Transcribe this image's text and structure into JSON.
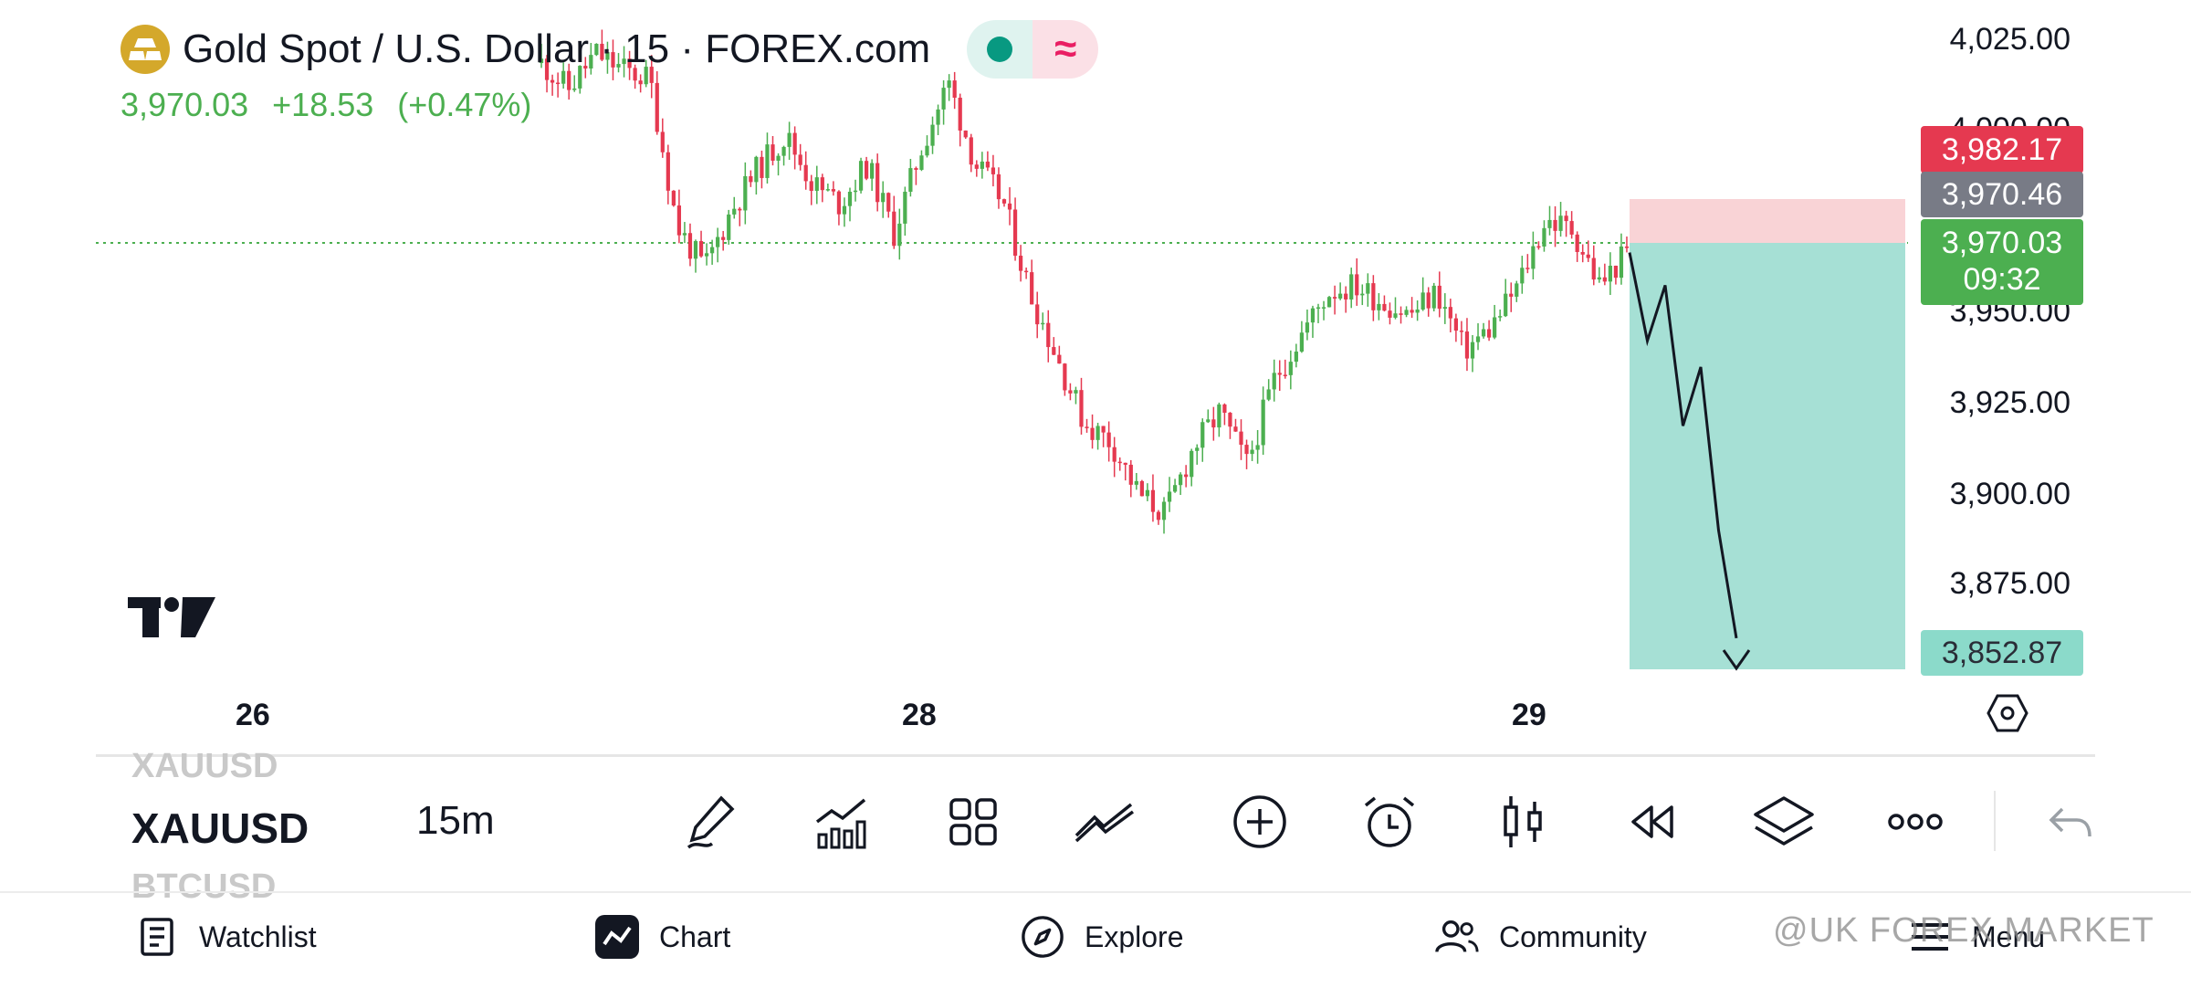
{
  "header": {
    "title": "Gold Spot / U.S. Dollar · 15 · FOREX.com",
    "last_price": "3,970.03",
    "change": "+18.53",
    "change_pct": "(+0.47%)"
  },
  "price_axis": {
    "labels": [
      "4,025.00",
      "4,000.00",
      "3,950.00",
      "3,925.00",
      "3,900.00",
      "3,875.00"
    ],
    "tags": {
      "stop": "3,982.17",
      "entry": "3,970.46",
      "current": "3,970.03",
      "countdown": "09:32",
      "target": "3,852.87"
    }
  },
  "time_axis": {
    "labels": [
      "26",
      "28",
      "29"
    ]
  },
  "colors": {
    "up": "#4caf50",
    "down": "#e53950",
    "stop_zone": "#f9d3d6",
    "target_zone": "#a6e0d5",
    "entry_tag": "#787b86"
  },
  "chart_data": {
    "type": "candlestick",
    "symbol": "XAUUSD",
    "interval": "15",
    "ylim": [
      3845,
      4035
    ],
    "close_path": [
      4028,
      4020,
      4031,
      4026,
      4023,
      3978,
      3965,
      3983,
      3996,
      4006,
      3991,
      3985,
      3997,
      3976,
      4002,
      4022,
      3997,
      3986,
      3958,
      3938,
      3918,
      3912,
      3896,
      3890,
      3910,
      3921,
      3905,
      3931,
      3945,
      3958,
      3960,
      3955,
      3951,
      3958,
      3940,
      3947,
      3960,
      3980,
      3977,
      3960,
      3970
    ],
    "last_price": 3970.03,
    "position": {
      "side": "short",
      "entry": 3970.46,
      "stop": 3982.17,
      "target": 3852.87
    },
    "projection_path": [
      3970,
      3943,
      3960,
      3917,
      3935,
      3885,
      3852
    ]
  },
  "toolbar": {
    "symbol": "XAUUSD",
    "symbol_prev": "XAUUSD",
    "symbol_next": "BTCUSD",
    "interval": "15m"
  },
  "nav": {
    "watchlist": "Watchlist",
    "chart": "Chart",
    "explore": "Explore",
    "community": "Community",
    "menu": "Menu"
  },
  "watermark": "@UK FOREX MARKET"
}
